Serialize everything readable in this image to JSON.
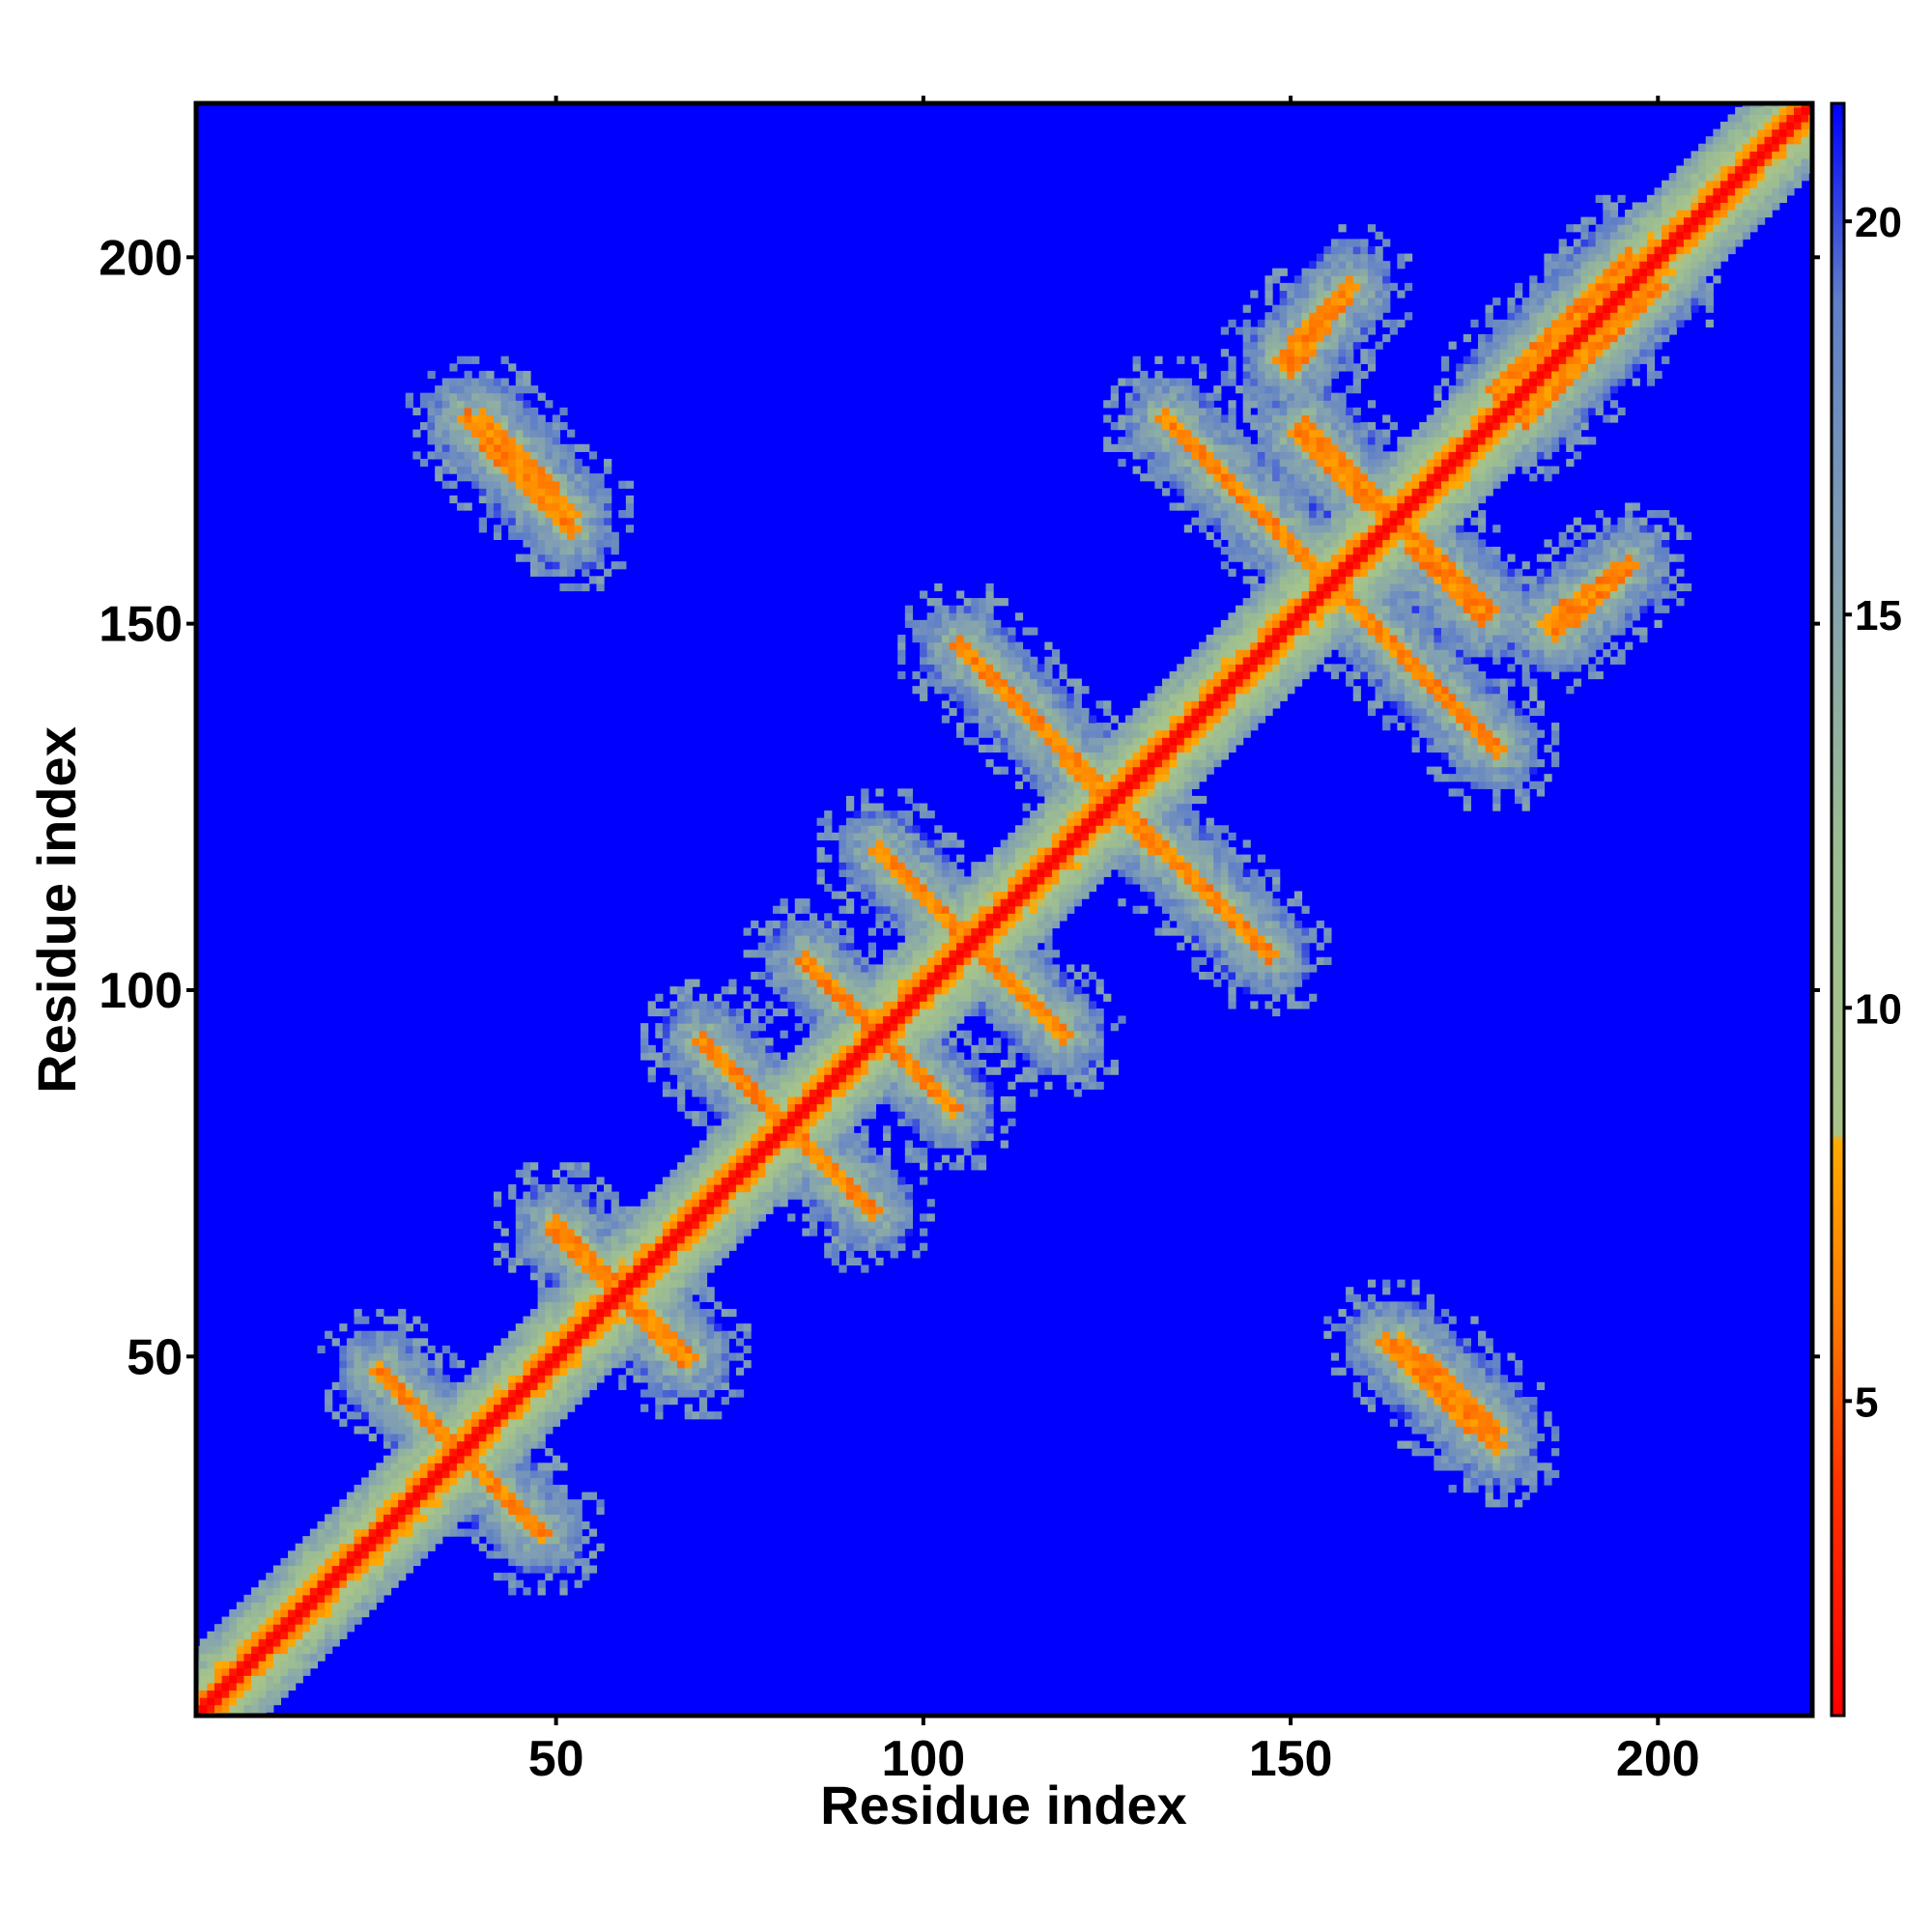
{
  "chart_data": {
    "type": "heatmap",
    "title": "",
    "xlabel": "Residue index",
    "ylabel": "Residue index",
    "xlim": [
      1,
      221
    ],
    "ylim": [
      1,
      221
    ],
    "x_ticks": [
      50,
      100,
      150,
      200
    ],
    "y_ticks": [
      50,
      100,
      150,
      200
    ],
    "colorbar": {
      "range": [
        1,
        21.5
      ],
      "ticks": [
        5,
        10,
        15,
        20
      ],
      "stops": [
        {
          "value": 1,
          "color": "#ff0000"
        },
        {
          "value": 4,
          "color": "#ff3300"
        },
        {
          "value": 6,
          "color": "#ff7700"
        },
        {
          "value": 8.3,
          "color": "#ffaa00"
        },
        {
          "value": 8.4,
          "color": "#a8c48a"
        },
        {
          "value": 12,
          "color": "#9cbd92"
        },
        {
          "value": 16,
          "color": "#7f9db5"
        },
        {
          "value": 19,
          "color": "#5f7fc8"
        },
        {
          "value": 21.5,
          "color": "#0000ff"
        }
      ]
    },
    "background_value": 21.5,
    "description": "Symmetric residue-residue distance map; low values (red/orange) along main diagonal and in contact bands, high values (blue) elsewhere",
    "diagonal_band": {
      "from": 1,
      "to": 221
    },
    "contact_segments": [
      {
        "from": [
          26,
          48
        ],
        "to": [
          48,
          26
        ]
      },
      {
        "from": [
          50,
          68
        ],
        "to": [
          67,
          50
        ]
      },
      {
        "from": [
          70,
          93
        ],
        "to": [
          93,
          70
        ]
      },
      {
        "from": [
          84,
          104
        ],
        "to": [
          104,
          84
        ]
      },
      {
        "from": [
          94,
          119
        ],
        "to": [
          118,
          95
        ]
      },
      {
        "from": [
          105,
          147
        ],
        "to": [
          147,
          105
        ]
      },
      {
        "from": [
          133,
          178
        ],
        "to": [
          178,
          133
        ]
      },
      {
        "from": [
          38,
          178
        ],
        "to": [
          52,
          163
        ]
      },
      {
        "from": [
          165,
          52
        ],
        "to": [
          178,
          40
        ]
      },
      {
        "from": [
          152,
          177
        ],
        "to": [
          176,
          151
        ]
      },
      {
        "from": [
          149,
          186
        ],
        "to": [
          157,
          195
        ]
      },
      {
        "from": [
          185,
          150
        ],
        "to": [
          196,
          158
        ]
      },
      {
        "from": [
          178,
          182
        ],
        "to": [
          196,
          200
        ]
      },
      {
        "from": [
          123,
          128
        ],
        "to": [
          131,
          120
        ]
      }
    ]
  }
}
